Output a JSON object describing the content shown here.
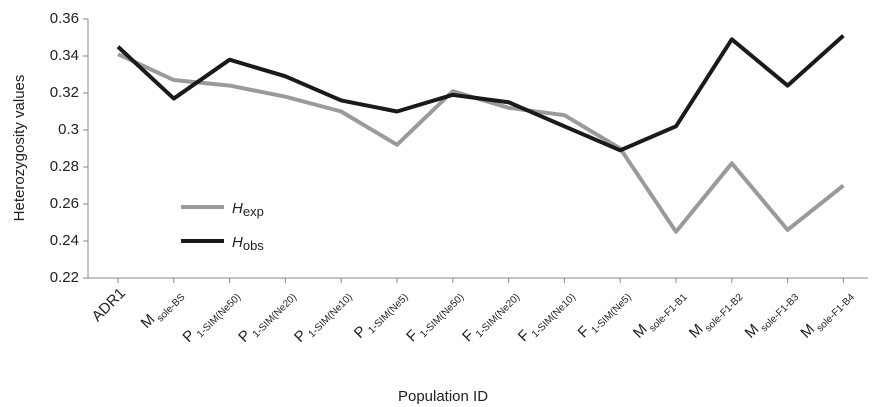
{
  "chart_data": {
    "type": "line",
    "y_label": "Heterozygosity values",
    "x_label": "Population ID",
    "categories": [
      {
        "label": "ADR1"
      },
      {
        "label": "M",
        "subscript": "sole-BS"
      },
      {
        "label": "P",
        "subscript": "1-SIM(Ne50)"
      },
      {
        "label": "P",
        "subscript": "1-SIM(Ne20)"
      },
      {
        "label": "P",
        "subscript": "1-SIM(Ne10)"
      },
      {
        "label": "P",
        "subscript": "1-SIM(Ne5)"
      },
      {
        "label": "F",
        "subscript": "1-SIM(Ne50)"
      },
      {
        "label": "F",
        "subscript": "1-SIM(Ne20)"
      },
      {
        "label": "F",
        "subscript": "1-SIM(Ne10)"
      },
      {
        "label": "F",
        "subscript": "1-SIM(Ne5)"
      },
      {
        "label": "M",
        "subscript": "sole-F1-B1"
      },
      {
        "label": "M",
        "subscript": "sole-F1-B2"
      },
      {
        "label": "M",
        "subscript": "sole-F1-B3"
      },
      {
        "label": "M",
        "subscript": "sole-F1-B4"
      }
    ],
    "series": [
      {
        "name": "H",
        "subscript": "exp",
        "color": "#9a9a9a",
        "values": [
          0.341,
          0.327,
          0.324,
          0.318,
          0.31,
          0.292,
          0.321,
          0.312,
          0.308,
          0.29,
          0.245,
          0.282,
          0.246,
          0.27
        ]
      },
      {
        "name": "H",
        "subscript": "obs",
        "color": "#1a1a1a",
        "values": [
          0.345,
          0.317,
          0.338,
          0.329,
          0.316,
          0.31,
          0.319,
          0.315,
          0.302,
          0.289,
          0.302,
          0.349,
          0.324,
          0.351
        ]
      }
    ],
    "ylim": [
      0.22,
      0.36
    ],
    "yticks": [
      0.22,
      0.24,
      0.26,
      0.28,
      0.3,
      0.32,
      0.34,
      0.36
    ]
  }
}
